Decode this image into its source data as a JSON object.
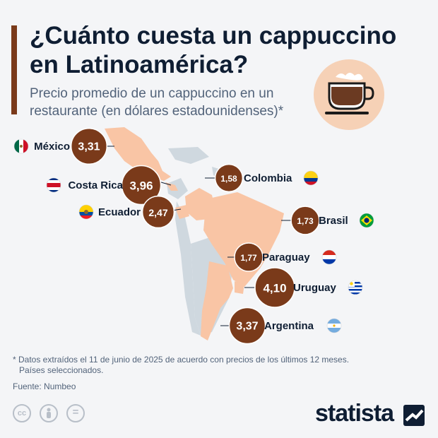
{
  "header": {
    "title": "¿Cuánto cuesta un cappuccino en Latinoamérica?",
    "subtitle": "Precio promedio de un cappuccino en un restaurante (en dólares estadounidenses)",
    "subtitle_mark": "*"
  },
  "chart_data": {
    "type": "bubble-map",
    "unit": "USD",
    "points": [
      {
        "country": "México",
        "label": "3,31",
        "value": 3.31
      },
      {
        "country": "Costa Rica",
        "label": "3,96",
        "value": 3.96
      },
      {
        "country": "Ecuador",
        "label": "2,47",
        "value": 2.47
      },
      {
        "country": "Colombia",
        "label": "1,58",
        "value": 1.58
      },
      {
        "country": "Brasil",
        "label": "1,73",
        "value": 1.73
      },
      {
        "country": "Paraguay",
        "label": "1,77",
        "value": 1.77
      },
      {
        "country": "Uruguay",
        "label": "4,10",
        "value": 4.1
      },
      {
        "country": "Argentina",
        "label": "3,37",
        "value": 3.37
      }
    ]
  },
  "footer": {
    "note_line1": "* Datos extraídos el 11 de junio de 2025 de acuerdo con precios de los últimos 12 meses.",
    "note_line2": "Países seleccionados.",
    "source": "Fuente: Numbeo",
    "license_icons": [
      "cc-icon",
      "person-icon",
      "equals-icon"
    ],
    "brand": "statista"
  },
  "colors": {
    "bubble": "#7a3a1a",
    "highlight_land": "#f9c5a5",
    "other_land": "#cfd8df",
    "title": "#0f1e33",
    "subtitle": "#52637a"
  }
}
